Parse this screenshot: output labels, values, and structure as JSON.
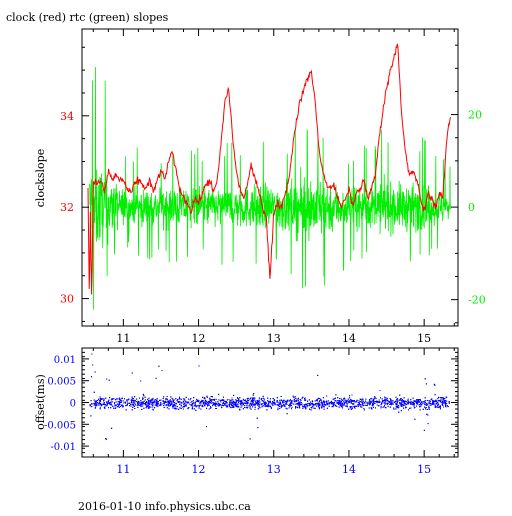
{
  "colors": {
    "clock": "#ff0000",
    "rtc": "#00ee00",
    "offset": "#0000ff",
    "frame": "#000000",
    "text": "#000000"
  },
  "chart_data": [
    {
      "type": "line",
      "title": "clock (red) rtc (green) slopes",
      "ylabel": "clockslope",
      "xlim": [
        10.45,
        15.45
      ],
      "ylim_left": [
        29.4,
        35.9
      ],
      "ylim_right": [
        -25.7,
        38.5
      ],
      "grid": false,
      "x_ticks": [
        11,
        12,
        13,
        14,
        15
      ],
      "y_ticks_left": [
        30,
        32,
        34
      ],
      "y_ticks_right": [
        -20,
        0,
        20
      ],
      "series": [
        {
          "name": "clock",
          "axis": "left",
          "x": [
            10.53,
            10.55,
            10.56,
            10.58,
            10.6,
            10.65,
            10.7,
            10.75,
            10.8,
            10.85,
            10.9,
            10.95,
            11.0,
            11.05,
            11.1,
            11.15,
            11.2,
            11.25,
            11.3,
            11.35,
            11.4,
            11.45,
            11.5,
            11.55,
            11.6,
            11.65,
            11.7,
            11.75,
            11.8,
            11.85,
            11.9,
            11.95,
            12.0,
            12.05,
            12.1,
            12.15,
            12.2,
            12.25,
            12.3,
            12.35,
            12.4,
            12.45,
            12.5,
            12.55,
            12.6,
            12.65,
            12.7,
            12.75,
            12.8,
            12.85,
            12.9,
            12.95,
            13.0,
            13.05,
            13.1,
            13.15,
            13.2,
            13.25,
            13.3,
            13.35,
            13.4,
            13.45,
            13.5,
            13.55,
            13.6,
            13.65,
            13.7,
            13.75,
            13.8,
            13.85,
            13.9,
            13.95,
            14.0,
            14.05,
            14.1,
            14.15,
            14.2,
            14.25,
            14.3,
            14.35,
            14.4,
            14.45,
            14.5,
            14.55,
            14.6,
            14.65,
            14.7,
            14.75,
            14.8,
            14.85,
            14.9,
            14.95,
            15.0,
            15.05,
            15.1,
            15.15,
            15.2,
            15.25,
            15.3,
            15.35
          ],
          "y": [
            32.4,
            29.7,
            32.2,
            29.8,
            32.6,
            32.5,
            32.6,
            32.3,
            32.8,
            32.6,
            32.7,
            32.6,
            32.6,
            32.4,
            32.3,
            32.5,
            32.6,
            32.5,
            32.4,
            32.6,
            32.3,
            32.6,
            32.8,
            32.6,
            33.0,
            33.2,
            32.8,
            32.4,
            32.2,
            32.1,
            31.9,
            32.2,
            32.1,
            32.3,
            32.5,
            32.6,
            32.3,
            32.6,
            33.4,
            34.3,
            34.6,
            33.6,
            32.8,
            32.4,
            32.2,
            32.5,
            32.9,
            32.6,
            32.4,
            32.0,
            31.8,
            30.4,
            31.9,
            32.1,
            32.0,
            32.3,
            32.6,
            33.3,
            33.9,
            34.3,
            34.6,
            34.8,
            35.0,
            34.3,
            33.3,
            32.8,
            32.5,
            32.4,
            32.5,
            32.2,
            32.0,
            32.2,
            32.4,
            32.0,
            32.3,
            32.4,
            32.6,
            32.2,
            32.4,
            32.7,
            33.5,
            34.1,
            34.6,
            35.0,
            35.3,
            35.6,
            34.0,
            33.2,
            32.7,
            32.8,
            32.6,
            32.2,
            31.9,
            32.3,
            32.2,
            32.0,
            32.3,
            32.2,
            33.5,
            34.0
          ]
        },
        {
          "name": "rtc",
          "axis": "right",
          "envelope": [
            {
              "x": 10.6,
              "hi": 37,
              "lo": -25
            },
            {
              "x": 11.0,
              "hi": 13,
              "lo": -10
            },
            {
              "x": 11.5,
              "hi": 13,
              "lo": -12
            },
            {
              "x": 12.0,
              "hi": 14,
              "lo": -12
            },
            {
              "x": 12.5,
              "hi": 14,
              "lo": -13
            },
            {
              "x": 13.0,
              "hi": 15,
              "lo": -14
            },
            {
              "x": 13.5,
              "hi": 18,
              "lo": -24
            },
            {
              "x": 14.0,
              "hi": 13,
              "lo": -12
            },
            {
              "x": 14.5,
              "hi": 18,
              "lo": -13
            },
            {
              "x": 15.0,
              "hi": 15,
              "lo": -14
            },
            {
              "x": 15.3,
              "hi": 12,
              "lo": -9
            }
          ],
          "center": 0
        }
      ]
    },
    {
      "type": "scatter",
      "ylabel": "offset(ms)",
      "xlim": [
        10.45,
        15.45
      ],
      "ylim": [
        -0.0125,
        0.0125
      ],
      "grid": false,
      "x_ticks": [
        11,
        12,
        13,
        14,
        15
      ],
      "y_ticks": [
        -0.01,
        -0.005,
        0,
        0.005,
        0.01
      ],
      "y_tick_labels": [
        "-0.01",
        "-0.005",
        "0",
        "0.005",
        "0.01"
      ],
      "series": [
        {
          "name": "offset",
          "x_range": [
            10.55,
            15.33
          ],
          "center": 0,
          "typical_spread": 0.0025,
          "outlier_max": 0.0115,
          "outlier_min": -0.0105
        }
      ]
    }
  ],
  "footer": {
    "text": "2016-01-10 info.physics.ubc.ca"
  }
}
